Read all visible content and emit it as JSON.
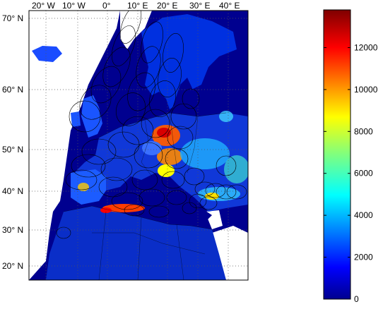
{
  "map": {
    "lon_ticks": [
      {
        "value": -20,
        "label": "20° W"
      },
      {
        "value": -10,
        "label": "10° W"
      },
      {
        "value": 0,
        "label": "0°"
      },
      {
        "value": 10,
        "label": "10° E"
      },
      {
        "value": 20,
        "label": "20° E"
      },
      {
        "value": 30,
        "label": "30° E"
      },
      {
        "value": 40,
        "label": "40° E"
      }
    ],
    "lat_ticks": [
      {
        "value": 70,
        "label": "70° N"
      },
      {
        "value": 60,
        "label": "60° N"
      },
      {
        "value": 50,
        "label": "50° N"
      },
      {
        "value": 40,
        "label": "40° N"
      },
      {
        "value": 30,
        "label": "30° N"
      },
      {
        "value": 20,
        "label": "20° N"
      }
    ],
    "grid": "dotted",
    "colors": {
      "ocean_low": "#00008f",
      "land_mask": "#ffffff",
      "footprint_outline": "#000000"
    }
  },
  "colorbar": {
    "colormap": "jet",
    "range": [
      0,
      13800
    ],
    "ticks": [
      {
        "value": 0,
        "label": "0"
      },
      {
        "value": 2000,
        "label": "2000"
      },
      {
        "value": 4000,
        "label": "4000"
      },
      {
        "value": 6000,
        "label": "6000"
      },
      {
        "value": 8000,
        "label": "8000"
      },
      {
        "value": 10000,
        "label": "10000"
      },
      {
        "value": 12000,
        "label": "12000"
      }
    ],
    "stops": [
      "#00008f",
      "#0000ff",
      "#007fff",
      "#00ffff",
      "#7fff7f",
      "#ffff00",
      "#ff7f00",
      "#ff0000",
      "#7f0000"
    ]
  }
}
